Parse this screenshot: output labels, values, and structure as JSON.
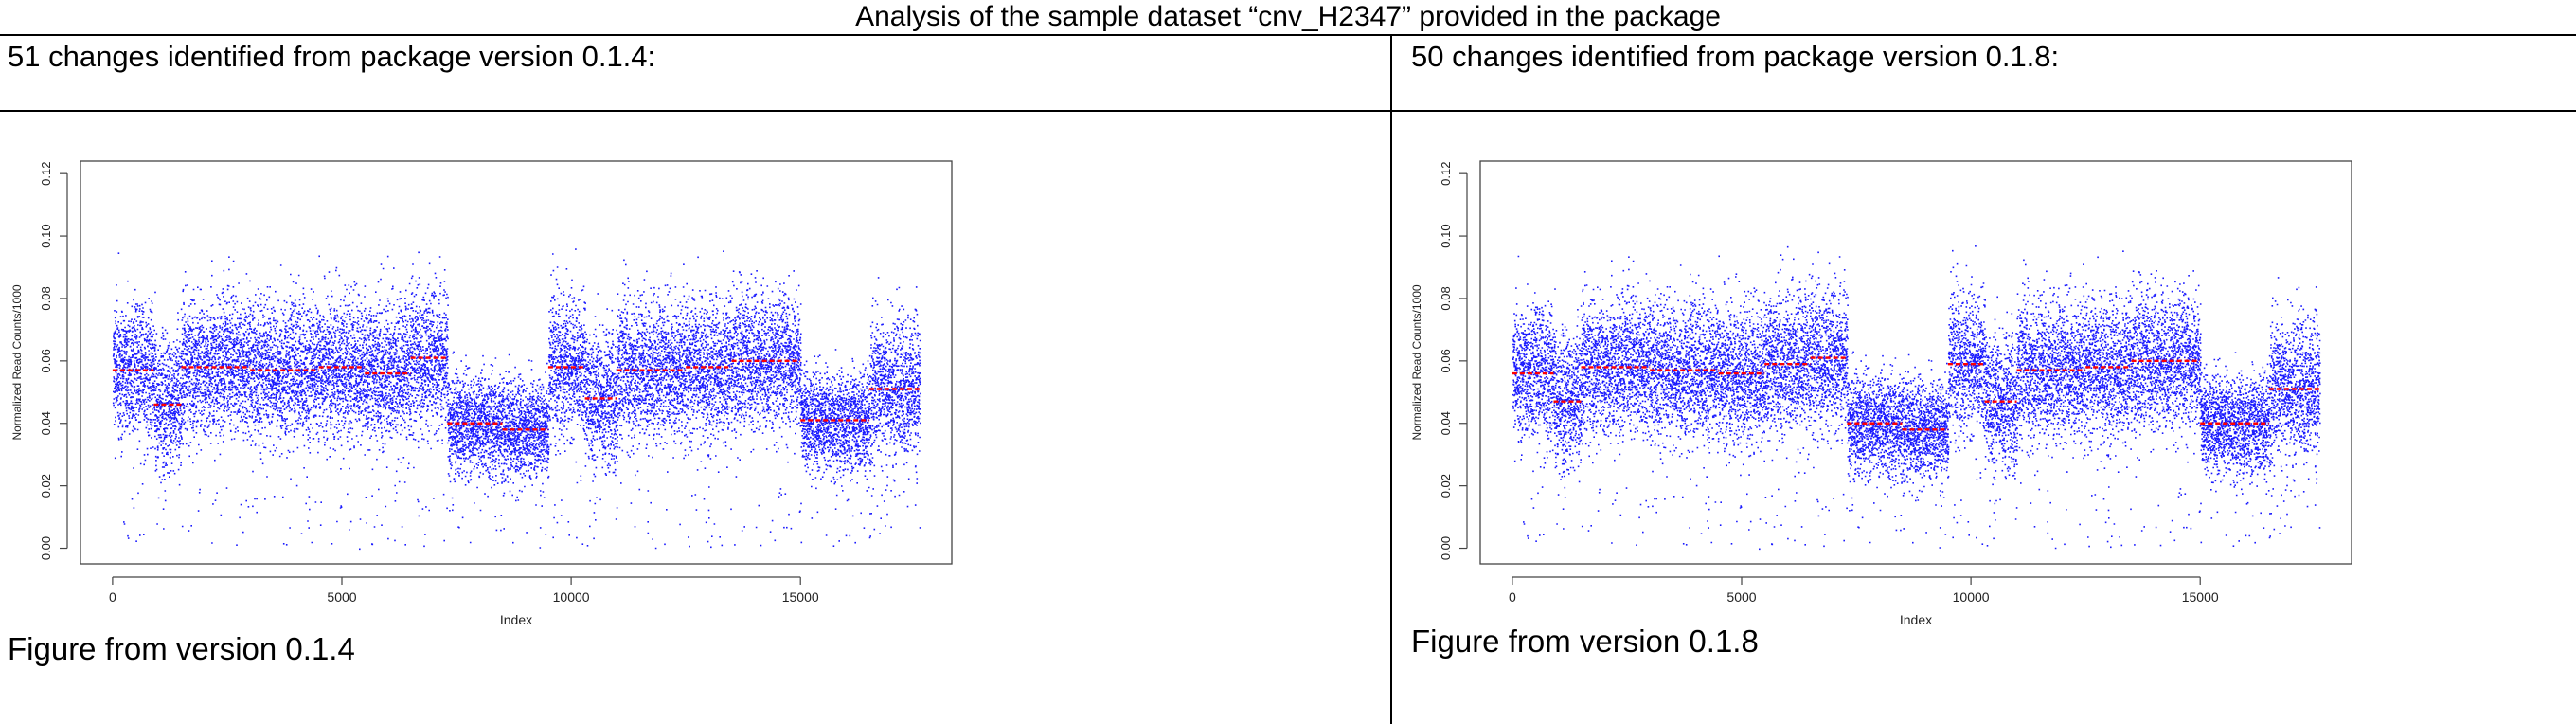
{
  "title": "Analysis of the sample dataset “cnv_H2347” provided in the package",
  "left": {
    "header": "51 changes identified from package version 0.1.4:",
    "caption": "Figure from version 0.1.4"
  },
  "right": {
    "header": "50 changes identified from package version 0.1.8:",
    "caption": "Figure from version 0.1.8"
  },
  "colors": {
    "points": "#1a1aff",
    "segments": "#ff0000"
  },
  "chart_data": [
    {
      "type": "scatter",
      "xlabel": "Index",
      "ylabel": "Normalized Read Counts/1000",
      "xlim": [
        -700,
        18300
      ],
      "ylim": [
        -0.005,
        0.124
      ],
      "xticks": [
        "0",
        "5000",
        "10000",
        "15000"
      ],
      "yticks": [
        "0.00",
        "0.02",
        "0.04",
        "0.06",
        "0.08",
        "0.10",
        "0.12"
      ],
      "n_points": 17600,
      "segments": [
        {
          "x": [
            0,
            900
          ],
          "y": 0.057
        },
        {
          "x": [
            900,
            1500
          ],
          "y": 0.046
        },
        {
          "x": [
            1500,
            3000
          ],
          "y": 0.058
        },
        {
          "x": [
            3000,
            4500
          ],
          "y": 0.057
        },
        {
          "x": [
            4500,
            5500
          ],
          "y": 0.058
        },
        {
          "x": [
            5500,
            6500
          ],
          "y": 0.056
        },
        {
          "x": [
            6500,
            7300
          ],
          "y": 0.061
        },
        {
          "x": [
            7300,
            8500
          ],
          "y": 0.04
        },
        {
          "x": [
            8500,
            9500
          ],
          "y": 0.038
        },
        {
          "x": [
            9500,
            10300
          ],
          "y": 0.058
        },
        {
          "x": [
            10300,
            11000
          ],
          "y": 0.048
        },
        {
          "x": [
            11000,
            12500
          ],
          "y": 0.057
        },
        {
          "x": [
            12500,
            13500
          ],
          "y": 0.058
        },
        {
          "x": [
            13500,
            15000
          ],
          "y": 0.06
        },
        {
          "x": [
            15000,
            16500
          ],
          "y": 0.041
        },
        {
          "x": [
            16500,
            17600
          ],
          "y": 0.051
        }
      ]
    },
    {
      "type": "scatter",
      "xlabel": "Index",
      "ylabel": "Normalized Read Counts/1000",
      "xlim": [
        -700,
        18300
      ],
      "ylim": [
        -0.005,
        0.124
      ],
      "xticks": [
        "0",
        "5000",
        "10000",
        "15000"
      ],
      "yticks": [
        "0.00",
        "0.02",
        "0.04",
        "0.06",
        "0.08",
        "0.10",
        "0.12"
      ],
      "n_points": 17600,
      "segments": [
        {
          "x": [
            0,
            900
          ],
          "y": 0.056
        },
        {
          "x": [
            900,
            1500
          ],
          "y": 0.047
        },
        {
          "x": [
            1500,
            3000
          ],
          "y": 0.058
        },
        {
          "x": [
            3000,
            4500
          ],
          "y": 0.057
        },
        {
          "x": [
            4500,
            5500
          ],
          "y": 0.056
        },
        {
          "x": [
            5500,
            6500
          ],
          "y": 0.059
        },
        {
          "x": [
            6500,
            7300
          ],
          "y": 0.061
        },
        {
          "x": [
            7300,
            8500
          ],
          "y": 0.04
        },
        {
          "x": [
            8500,
            9500
          ],
          "y": 0.038
        },
        {
          "x": [
            9500,
            10300
          ],
          "y": 0.059
        },
        {
          "x": [
            10300,
            11000
          ],
          "y": 0.047
        },
        {
          "x": [
            11000,
            12500
          ],
          "y": 0.057
        },
        {
          "x": [
            12500,
            13500
          ],
          "y": 0.058
        },
        {
          "x": [
            13500,
            15000
          ],
          "y": 0.06
        },
        {
          "x": [
            15000,
            16500
          ],
          "y": 0.04
        },
        {
          "x": [
            16500,
            17600
          ],
          "y": 0.051
        }
      ]
    }
  ]
}
